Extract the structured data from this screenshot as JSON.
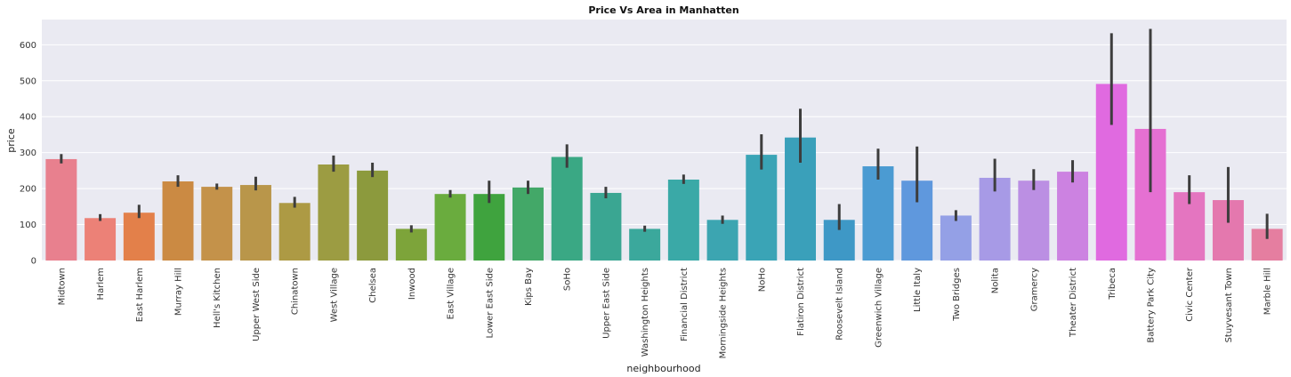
{
  "chart_data": {
    "type": "bar",
    "title": "Price Vs Area in Manhatten",
    "xlabel": "neighbourhood",
    "ylabel": "price",
    "ylim": [
      0,
      670
    ],
    "yticks": [
      0,
      100,
      200,
      300,
      400,
      500,
      600
    ],
    "grid": true,
    "legend": "none",
    "categories": [
      "Midtown",
      "Harlem",
      "East Harlem",
      "Murray Hill",
      "Hell's Kitchen",
      "Upper West Side",
      "Chinatown",
      "West Village",
      "Chelsea",
      "Inwood",
      "East Village",
      "Lower East Side",
      "Kips Bay",
      "SoHo",
      "Upper East Side",
      "Washington Heights",
      "Financial District",
      "Morningside Heights",
      "NoHo",
      "Flatiron District",
      "Roosevelt Island",
      "Greenwich Village",
      "Little Italy",
      "Two Bridges",
      "Nolita",
      "Gramercy",
      "Theater District",
      "Tribeca",
      "Battery Park City",
      "Civic Center",
      "Stuyvesant Town",
      "Marble Hill"
    ],
    "values": [
      282,
      118,
      133,
      220,
      205,
      210,
      160,
      267,
      250,
      88,
      185,
      185,
      203,
      288,
      188,
      88,
      225,
      113,
      294,
      342,
      113,
      262,
      222,
      125,
      230,
      222,
      247,
      491,
      366,
      190,
      168,
      88
    ],
    "error_low": [
      270,
      110,
      118,
      205,
      197,
      195,
      147,
      247,
      232,
      78,
      175,
      160,
      185,
      258,
      173,
      80,
      213,
      102,
      253,
      272,
      85,
      225,
      162,
      110,
      192,
      196,
      217,
      377,
      190,
      157,
      105,
      60
    ],
    "error_high": [
      296,
      129,
      155,
      237,
      214,
      233,
      177,
      292,
      272,
      98,
      196,
      222,
      222,
      323,
      205,
      97,
      239,
      125,
      351,
      422,
      157,
      311,
      317,
      140,
      283,
      254,
      279,
      632,
      644,
      237,
      260,
      130
    ],
    "colors": [
      "#e8808e",
      "#ec8177",
      "#e3804a",
      "#cb8a43",
      "#c4924a",
      "#b9964a",
      "#ad9a44",
      "#9c9c42",
      "#8c9a3d",
      "#7da43a",
      "#6aac3e",
      "#3fa33e",
      "#43a868",
      "#3aa884",
      "#3aa692",
      "#3ba89c",
      "#3aa9a7",
      "#3ca5b1",
      "#3aa4b6",
      "#3aa0ba",
      "#3e98c6",
      "#4b9bd2",
      "#5f98dd",
      "#94a0e6",
      "#a79ae6",
      "#bb8fe3",
      "#cc82e1",
      "#e06ae0",
      "#e570d2",
      "#e475c0",
      "#e478ae",
      "#e57ea0"
    ]
  }
}
